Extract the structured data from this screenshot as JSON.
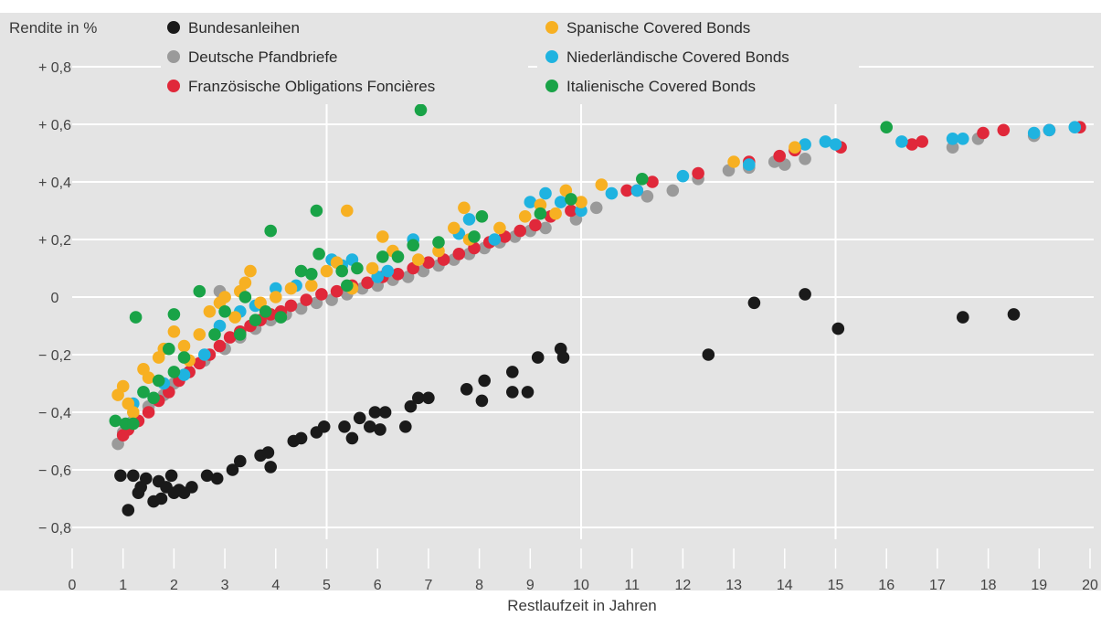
{
  "chart_data": {
    "type": "scatter",
    "title": "",
    "ylabel": "Rendite in %",
    "xlabel": "Restlaufzeit in Jahren",
    "xlim": [
      0,
      20
    ],
    "ylim": [
      -0.9,
      0.9
    ],
    "grid": true,
    "legend_position": "top",
    "x_ticks": [
      {
        "value": 0,
        "label": "0"
      },
      {
        "value": 1,
        "label": "1"
      },
      {
        "value": 2,
        "label": "2"
      },
      {
        "value": 3,
        "label": "3"
      },
      {
        "value": 4,
        "label": "4"
      },
      {
        "value": 5,
        "label": "5"
      },
      {
        "value": 6,
        "label": "6"
      },
      {
        "value": 7,
        "label": "7"
      },
      {
        "value": 8,
        "label": "8"
      },
      {
        "value": 9,
        "label": "9"
      },
      {
        "value": 10,
        "label": "10"
      },
      {
        "value": 11,
        "label": "11"
      },
      {
        "value": 12,
        "label": "12"
      },
      {
        "value": 13,
        "label": "13"
      },
      {
        "value": 14,
        "label": "14"
      },
      {
        "value": 15,
        "label": "15"
      },
      {
        "value": 16,
        "label": "16"
      },
      {
        "value": 17,
        "label": "17"
      },
      {
        "value": 18,
        "label": "18"
      },
      {
        "value": 19,
        "label": "19"
      },
      {
        "value": 20,
        "label": "20"
      }
    ],
    "y_ticks": [
      {
        "value": 0.8,
        "label": "+ 0,8"
      },
      {
        "value": 0.6,
        "label": "+ 0,6"
      },
      {
        "value": 0.4,
        "label": "+ 0,4"
      },
      {
        "value": 0.2,
        "label": "+ 0,2"
      },
      {
        "value": 0,
        "label": "0"
      },
      {
        "value": -0.2,
        "label": "− 0,2"
      },
      {
        "value": -0.4,
        "label": "− 0,4"
      },
      {
        "value": -0.6,
        "label": "− 0,6"
      },
      {
        "value": -0.8,
        "label": "− 0,8"
      }
    ],
    "series": [
      {
        "name": "Bundesanleihen",
        "color": "#1a1a1a",
        "points": [
          [
            0.95,
            -0.62
          ],
          [
            1.1,
            -0.74
          ],
          [
            1.2,
            -0.62
          ],
          [
            1.3,
            -0.68
          ],
          [
            1.35,
            -0.66
          ],
          [
            1.45,
            -0.63
          ],
          [
            1.6,
            -0.71
          ],
          [
            1.7,
            -0.64
          ],
          [
            1.75,
            -0.7
          ],
          [
            1.85,
            -0.66
          ],
          [
            1.95,
            -0.62
          ],
          [
            2.0,
            -0.68
          ],
          [
            2.1,
            -0.67
          ],
          [
            2.2,
            -0.68
          ],
          [
            2.35,
            -0.66
          ],
          [
            2.65,
            -0.62
          ],
          [
            2.85,
            -0.63
          ],
          [
            3.15,
            -0.6
          ],
          [
            3.3,
            -0.57
          ],
          [
            3.7,
            -0.55
          ],
          [
            3.85,
            -0.54
          ],
          [
            3.9,
            -0.59
          ],
          [
            4.35,
            -0.5
          ],
          [
            4.5,
            -0.49
          ],
          [
            4.8,
            -0.47
          ],
          [
            4.95,
            -0.45
          ],
          [
            5.35,
            -0.45
          ],
          [
            5.5,
            -0.49
          ],
          [
            5.65,
            -0.42
          ],
          [
            5.85,
            -0.45
          ],
          [
            5.95,
            -0.4
          ],
          [
            6.05,
            -0.46
          ],
          [
            6.15,
            -0.4
          ],
          [
            6.55,
            -0.45
          ],
          [
            6.65,
            -0.38
          ],
          [
            6.8,
            -0.35
          ],
          [
            7.0,
            -0.35
          ],
          [
            7.75,
            -0.32
          ],
          [
            8.05,
            -0.36
          ],
          [
            8.1,
            -0.29
          ],
          [
            8.65,
            -0.26
          ],
          [
            8.65,
            -0.33
          ],
          [
            8.95,
            -0.33
          ],
          [
            9.15,
            -0.21
          ],
          [
            9.6,
            -0.18
          ],
          [
            9.65,
            -0.21
          ],
          [
            12.5,
            -0.2
          ],
          [
            13.4,
            -0.02
          ],
          [
            14.4,
            0.01
          ],
          [
            15.05,
            -0.11
          ],
          [
            17.5,
            -0.07
          ],
          [
            18.5,
            -0.06
          ]
        ]
      },
      {
        "name": "Deutsche Pfandbriefe",
        "color": "#9a9a9a",
        "points": [
          [
            0.9,
            -0.51
          ],
          [
            1.0,
            -0.47
          ],
          [
            1.2,
            -0.43
          ],
          [
            1.5,
            -0.38
          ],
          [
            1.8,
            -0.34
          ],
          [
            2.0,
            -0.3
          ],
          [
            2.3,
            -0.26
          ],
          [
            2.6,
            -0.22
          ],
          [
            2.9,
            0.02
          ],
          [
            3.0,
            -0.18
          ],
          [
            3.3,
            -0.14
          ],
          [
            3.6,
            -0.11
          ],
          [
            3.9,
            -0.08
          ],
          [
            4.2,
            -0.06
          ],
          [
            4.5,
            -0.04
          ],
          [
            4.8,
            -0.02
          ],
          [
            5.1,
            -0.01
          ],
          [
            5.4,
            0.01
          ],
          [
            5.7,
            0.03
          ],
          [
            6.0,
            0.04
          ],
          [
            6.3,
            0.06
          ],
          [
            6.6,
            0.07
          ],
          [
            6.9,
            0.09
          ],
          [
            7.2,
            0.11
          ],
          [
            7.5,
            0.13
          ],
          [
            7.8,
            0.15
          ],
          [
            8.1,
            0.17
          ],
          [
            8.4,
            0.19
          ],
          [
            8.7,
            0.21
          ],
          [
            9.0,
            0.23
          ],
          [
            9.3,
            0.24
          ],
          [
            9.9,
            0.27
          ],
          [
            10.3,
            0.31
          ],
          [
            11.3,
            0.35
          ],
          [
            11.8,
            0.37
          ],
          [
            12.3,
            0.41
          ],
          [
            12.9,
            0.44
          ],
          [
            13.3,
            0.45
          ],
          [
            13.8,
            0.47
          ],
          [
            14.0,
            0.46
          ],
          [
            14.4,
            0.48
          ],
          [
            17.3,
            0.52
          ],
          [
            17.8,
            0.55
          ],
          [
            18.9,
            0.56
          ]
        ]
      },
      {
        "name": "Französische Obligations Foncières",
        "color": "#e0283a",
        "points": [
          [
            1.0,
            -0.48
          ],
          [
            1.1,
            -0.46
          ],
          [
            1.3,
            -0.43
          ],
          [
            1.5,
            -0.4
          ],
          [
            1.7,
            -0.36
          ],
          [
            1.9,
            -0.33
          ],
          [
            2.1,
            -0.29
          ],
          [
            2.3,
            -0.26
          ],
          [
            2.5,
            -0.23
          ],
          [
            2.7,
            -0.2
          ],
          [
            2.9,
            -0.17
          ],
          [
            3.1,
            -0.14
          ],
          [
            3.3,
            -0.12
          ],
          [
            3.5,
            -0.1
          ],
          [
            3.7,
            -0.08
          ],
          [
            3.9,
            -0.06
          ],
          [
            4.1,
            -0.05
          ],
          [
            4.3,
            -0.03
          ],
          [
            4.6,
            -0.01
          ],
          [
            4.9,
            0.01
          ],
          [
            5.2,
            0.02
          ],
          [
            5.5,
            0.04
          ],
          [
            5.8,
            0.05
          ],
          [
            6.1,
            0.07
          ],
          [
            6.4,
            0.08
          ],
          [
            6.7,
            0.1
          ],
          [
            7.0,
            0.12
          ],
          [
            7.3,
            0.13
          ],
          [
            7.6,
            0.15
          ],
          [
            7.9,
            0.17
          ],
          [
            8.2,
            0.19
          ],
          [
            8.5,
            0.21
          ],
          [
            8.8,
            0.23
          ],
          [
            9.1,
            0.25
          ],
          [
            9.4,
            0.28
          ],
          [
            9.8,
            0.3
          ],
          [
            10.9,
            0.37
          ],
          [
            11.1,
            0.37
          ],
          [
            11.4,
            0.4
          ],
          [
            12.3,
            0.43
          ],
          [
            13.3,
            0.47
          ],
          [
            13.9,
            0.49
          ],
          [
            14.2,
            0.51
          ],
          [
            15.1,
            0.52
          ],
          [
            16.5,
            0.53
          ],
          [
            16.7,
            0.54
          ],
          [
            17.9,
            0.57
          ],
          [
            18.3,
            0.58
          ],
          [
            19.2,
            0.58
          ],
          [
            19.8,
            0.59
          ]
        ]
      },
      {
        "name": "Spanische Covered Bonds",
        "color": "#f7b022",
        "points": [
          [
            0.9,
            -0.34
          ],
          [
            1.0,
            -0.31
          ],
          [
            1.1,
            -0.37
          ],
          [
            1.2,
            -0.4
          ],
          [
            1.4,
            -0.25
          ],
          [
            1.5,
            -0.28
          ],
          [
            1.7,
            -0.21
          ],
          [
            1.8,
            -0.18
          ],
          [
            2.0,
            -0.12
          ],
          [
            2.2,
            -0.17
          ],
          [
            2.3,
            -0.22
          ],
          [
            2.5,
            -0.13
          ],
          [
            2.7,
            -0.05
          ],
          [
            2.9,
            -0.02
          ],
          [
            3.0,
            0.0
          ],
          [
            3.2,
            -0.07
          ],
          [
            3.3,
            0.02
          ],
          [
            3.4,
            0.05
          ],
          [
            3.5,
            0.09
          ],
          [
            3.7,
            -0.02
          ],
          [
            4.0,
            0.0
          ],
          [
            4.3,
            0.03
          ],
          [
            4.7,
            0.04
          ],
          [
            5.0,
            0.09
          ],
          [
            5.2,
            0.12
          ],
          [
            5.4,
            0.3
          ],
          [
            5.5,
            0.03
          ],
          [
            5.9,
            0.1
          ],
          [
            6.1,
            0.21
          ],
          [
            6.3,
            0.16
          ],
          [
            6.8,
            0.13
          ],
          [
            7.2,
            0.16
          ],
          [
            7.5,
            0.24
          ],
          [
            7.7,
            0.31
          ],
          [
            7.8,
            0.2
          ],
          [
            8.4,
            0.24
          ],
          [
            8.9,
            0.28
          ],
          [
            9.2,
            0.32
          ],
          [
            9.5,
            0.29
          ],
          [
            9.7,
            0.37
          ],
          [
            10.0,
            0.33
          ],
          [
            10.4,
            0.39
          ],
          [
            13.0,
            0.47
          ],
          [
            14.2,
            0.52
          ]
        ]
      },
      {
        "name": "Niederländische Covered Bonds",
        "color": "#1fb3e0",
        "points": [
          [
            1.2,
            -0.37
          ],
          [
            1.4,
            -0.33
          ],
          [
            1.8,
            -0.3
          ],
          [
            2.2,
            -0.27
          ],
          [
            2.6,
            -0.2
          ],
          [
            2.9,
            -0.1
          ],
          [
            3.3,
            -0.05
          ],
          [
            3.6,
            -0.03
          ],
          [
            4.0,
            0.03
          ],
          [
            4.4,
            0.04
          ],
          [
            5.1,
            0.13
          ],
          [
            5.3,
            0.11
          ],
          [
            5.5,
            0.13
          ],
          [
            6.0,
            0.07
          ],
          [
            6.2,
            0.09
          ],
          [
            6.7,
            0.2
          ],
          [
            7.6,
            0.22
          ],
          [
            7.8,
            0.27
          ],
          [
            8.3,
            0.2
          ],
          [
            9.0,
            0.33
          ],
          [
            9.3,
            0.36
          ],
          [
            9.6,
            0.33
          ],
          [
            10.0,
            0.3
          ],
          [
            10.6,
            0.36
          ],
          [
            11.1,
            0.37
          ],
          [
            12.0,
            0.42
          ],
          [
            13.3,
            0.46
          ],
          [
            14.4,
            0.53
          ],
          [
            14.8,
            0.54
          ],
          [
            15.0,
            0.53
          ],
          [
            16.3,
            0.54
          ],
          [
            17.3,
            0.55
          ],
          [
            17.5,
            0.55
          ],
          [
            18.9,
            0.57
          ],
          [
            19.2,
            0.58
          ],
          [
            19.7,
            0.59
          ]
        ]
      },
      {
        "name": "Italienische Covered Bonds",
        "color": "#19a347",
        "points": [
          [
            0.85,
            -0.43
          ],
          [
            1.05,
            -0.44
          ],
          [
            1.2,
            -0.44
          ],
          [
            1.25,
            -0.07
          ],
          [
            1.4,
            -0.33
          ],
          [
            1.6,
            -0.35
          ],
          [
            1.7,
            -0.29
          ],
          [
            1.9,
            -0.18
          ],
          [
            2.0,
            -0.06
          ],
          [
            2.0,
            -0.26
          ],
          [
            2.2,
            -0.21
          ],
          [
            2.5,
            0.02
          ],
          [
            2.8,
            -0.13
          ],
          [
            3.0,
            -0.05
          ],
          [
            3.3,
            -0.13
          ],
          [
            3.4,
            0.0
          ],
          [
            3.6,
            -0.08
          ],
          [
            3.8,
            -0.05
          ],
          [
            3.9,
            0.23
          ],
          [
            4.1,
            -0.07
          ],
          [
            4.5,
            0.09
          ],
          [
            4.7,
            0.08
          ],
          [
            4.8,
            0.3
          ],
          [
            4.85,
            0.15
          ],
          [
            5.3,
            0.09
          ],
          [
            5.4,
            0.04
          ],
          [
            5.6,
            0.1
          ],
          [
            6.1,
            0.14
          ],
          [
            6.4,
            0.14
          ],
          [
            6.7,
            0.18
          ],
          [
            6.85,
            0.65
          ],
          [
            7.2,
            0.19
          ],
          [
            7.9,
            0.21
          ],
          [
            8.05,
            0.28
          ],
          [
            9.2,
            0.29
          ],
          [
            9.8,
            0.34
          ],
          [
            11.2,
            0.41
          ],
          [
            16.0,
            0.59
          ]
        ]
      }
    ]
  }
}
